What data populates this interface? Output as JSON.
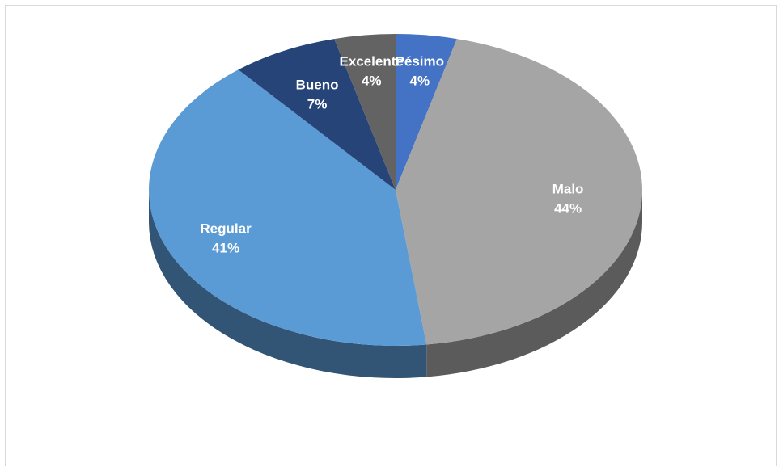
{
  "chart_data": {
    "type": "pie",
    "style": "3d",
    "start_angle": "12 o'clock, clockwise",
    "slices": [
      {
        "label": "Pésimo",
        "value": 4,
        "percent_label": "4%",
        "color": "#4472c4"
      },
      {
        "label": "Malo",
        "value": 44,
        "percent_label": "44%",
        "color": "#a5a5a5"
      },
      {
        "label": "Regular",
        "value": 41,
        "percent_label": "41%",
        "color": "#5b9bd5"
      },
      {
        "label": "Bueno",
        "value": 7,
        "percent_label": "7%",
        "color": "#264478"
      },
      {
        "label": "Excelente",
        "value": 4,
        "percent_label": "4%",
        "color": "#636363"
      }
    ]
  }
}
